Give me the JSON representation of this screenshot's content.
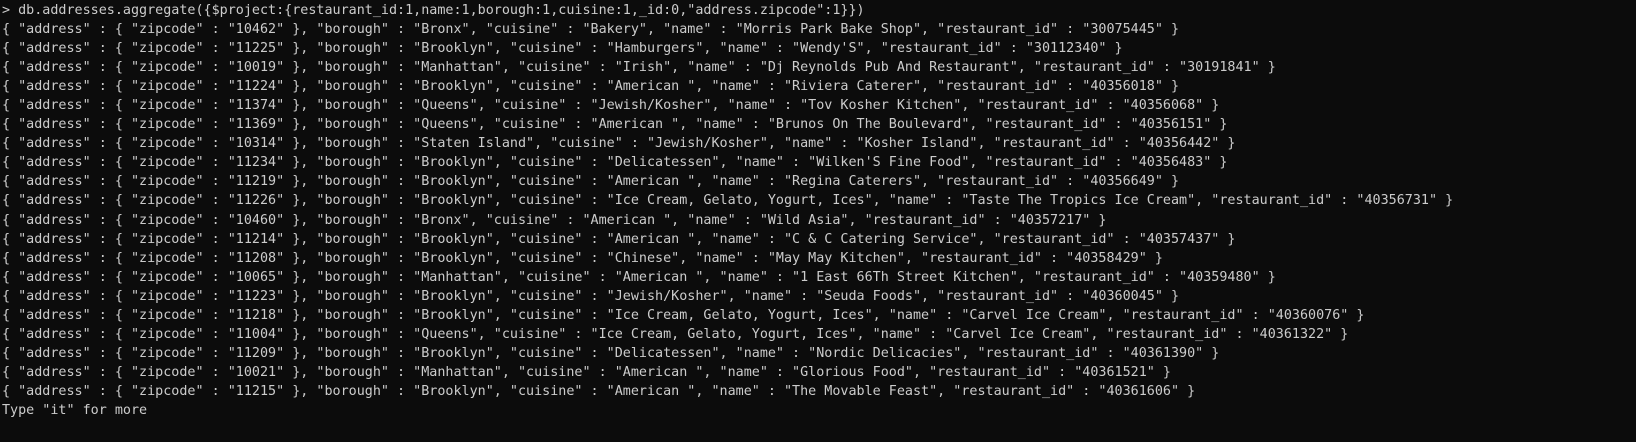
{
  "terminal": {
    "prompt": ">",
    "command": "db.addresses.aggregate({$project:{restaurant_id:1,name:1,borough:1,cuisine:1,_id:0,\"address.zipcode\":1}})",
    "results": [
      "{ \"address\" : { \"zipcode\" : \"10462\" }, \"borough\" : \"Bronx\", \"cuisine\" : \"Bakery\", \"name\" : \"Morris Park Bake Shop\", \"restaurant_id\" : \"30075445\" }",
      "{ \"address\" : { \"zipcode\" : \"11225\" }, \"borough\" : \"Brooklyn\", \"cuisine\" : \"Hamburgers\", \"name\" : \"Wendy'S\", \"restaurant_id\" : \"30112340\" }",
      "{ \"address\" : { \"zipcode\" : \"10019\" }, \"borough\" : \"Manhattan\", \"cuisine\" : \"Irish\", \"name\" : \"Dj Reynolds Pub And Restaurant\", \"restaurant_id\" : \"30191841\" }",
      "{ \"address\" : { \"zipcode\" : \"11224\" }, \"borough\" : \"Brooklyn\", \"cuisine\" : \"American \", \"name\" : \"Riviera Caterer\", \"restaurant_id\" : \"40356018\" }",
      "{ \"address\" : { \"zipcode\" : \"11374\" }, \"borough\" : \"Queens\", \"cuisine\" : \"Jewish/Kosher\", \"name\" : \"Tov Kosher Kitchen\", \"restaurant_id\" : \"40356068\" }",
      "{ \"address\" : { \"zipcode\" : \"11369\" }, \"borough\" : \"Queens\", \"cuisine\" : \"American \", \"name\" : \"Brunos On The Boulevard\", \"restaurant_id\" : \"40356151\" }",
      "{ \"address\" : { \"zipcode\" : \"10314\" }, \"borough\" : \"Staten Island\", \"cuisine\" : \"Jewish/Kosher\", \"name\" : \"Kosher Island\", \"restaurant_id\" : \"40356442\" }",
      "{ \"address\" : { \"zipcode\" : \"11234\" }, \"borough\" : \"Brooklyn\", \"cuisine\" : \"Delicatessen\", \"name\" : \"Wilken'S Fine Food\", \"restaurant_id\" : \"40356483\" }",
      "{ \"address\" : { \"zipcode\" : \"11219\" }, \"borough\" : \"Brooklyn\", \"cuisine\" : \"American \", \"name\" : \"Regina Caterers\", \"restaurant_id\" : \"40356649\" }",
      "{ \"address\" : { \"zipcode\" : \"11226\" }, \"borough\" : \"Brooklyn\", \"cuisine\" : \"Ice Cream, Gelato, Yogurt, Ices\", \"name\" : \"Taste The Tropics Ice Cream\", \"restaurant_id\" : \"40356731\" }",
      "{ \"address\" : { \"zipcode\" : \"10460\" }, \"borough\" : \"Bronx\", \"cuisine\" : \"American \", \"name\" : \"Wild Asia\", \"restaurant_id\" : \"40357217\" }",
      "{ \"address\" : { \"zipcode\" : \"11214\" }, \"borough\" : \"Brooklyn\", \"cuisine\" : \"American \", \"name\" : \"C & C Catering Service\", \"restaurant_id\" : \"40357437\" }",
      "{ \"address\" : { \"zipcode\" : \"11208\" }, \"borough\" : \"Brooklyn\", \"cuisine\" : \"Chinese\", \"name\" : \"May May Kitchen\", \"restaurant_id\" : \"40358429\" }",
      "{ \"address\" : { \"zipcode\" : \"10065\" }, \"borough\" : \"Manhattan\", \"cuisine\" : \"American \", \"name\" : \"1 East 66Th Street Kitchen\", \"restaurant_id\" : \"40359480\" }",
      "{ \"address\" : { \"zipcode\" : \"11223\" }, \"borough\" : \"Brooklyn\", \"cuisine\" : \"Jewish/Kosher\", \"name\" : \"Seuda Foods\", \"restaurant_id\" : \"40360045\" }",
      "{ \"address\" : { \"zipcode\" : \"11218\" }, \"borough\" : \"Brooklyn\", \"cuisine\" : \"Ice Cream, Gelato, Yogurt, Ices\", \"name\" : \"Carvel Ice Cream\", \"restaurant_id\" : \"40360076\" }",
      "{ \"address\" : { \"zipcode\" : \"11004\" }, \"borough\" : \"Queens\", \"cuisine\" : \"Ice Cream, Gelato, Yogurt, Ices\", \"name\" : \"Carvel Ice Cream\", \"restaurant_id\" : \"40361322\" }",
      "{ \"address\" : { \"zipcode\" : \"11209\" }, \"borough\" : \"Brooklyn\", \"cuisine\" : \"Delicatessen\", \"name\" : \"Nordic Delicacies\", \"restaurant_id\" : \"40361390\" }",
      "{ \"address\" : { \"zipcode\" : \"10021\" }, \"borough\" : \"Manhattan\", \"cuisine\" : \"American \", \"name\" : \"Glorious Food\", \"restaurant_id\" : \"40361521\" }",
      "{ \"address\" : { \"zipcode\" : \"11215\" }, \"borough\" : \"Brooklyn\", \"cuisine\" : \"American \", \"name\" : \"The Movable Feast\", \"restaurant_id\" : \"40361606\" }"
    ],
    "footer": "Type \"it\" for more",
    "colors": {
      "background": "#0c0c0c",
      "foreground": "#cccccc"
    }
  }
}
